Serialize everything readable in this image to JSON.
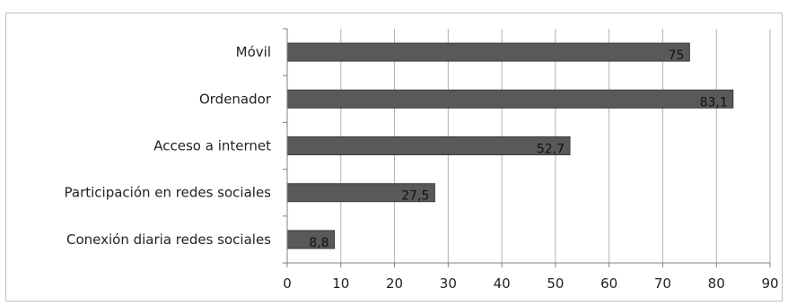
{
  "chart_data": {
    "type": "bar",
    "orientation": "horizontal",
    "title": "",
    "xlabel": "",
    "ylabel": "",
    "categories": [
      "Móvil",
      "Ordenador",
      "Acceso a internet",
      "Participación en redes sociales",
      "Conexión diaria redes sociales"
    ],
    "values": [
      75,
      83.1,
      52.7,
      27.5,
      8.8
    ],
    "data_labels": [
      "75",
      "83,1",
      "52,7",
      "27,5",
      "8,8"
    ],
    "xlim": [
      0,
      90
    ],
    "x_ticks": [
      0,
      10,
      20,
      30,
      40,
      50,
      60,
      70,
      80,
      90
    ],
    "grid": "vertical",
    "legend": "none",
    "bar_color": "#595959",
    "grid_color": "#b0b0b0"
  }
}
